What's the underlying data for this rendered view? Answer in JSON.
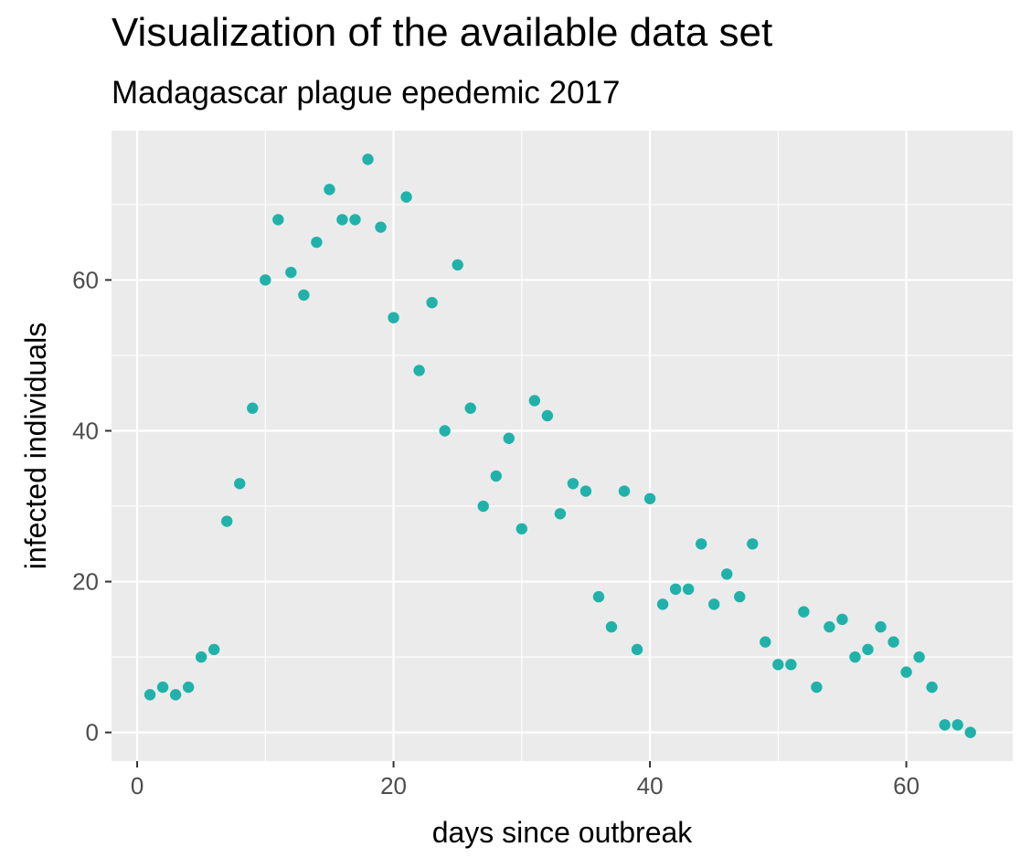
{
  "chart_data": {
    "type": "scatter",
    "title": "Visualization of the available data set",
    "subtitle": "Madagascar plague epedemic 2017",
    "xlabel": "days since outbreak",
    "ylabel": "infected individuals",
    "xlim": [
      -2,
      68.3
    ],
    "ylim": [
      -3.8,
      79.8
    ],
    "x_ticks": [
      0,
      20,
      40,
      60
    ],
    "y_ticks": [
      0,
      20,
      40,
      60
    ],
    "grid": true,
    "point_color": "#20b2aa",
    "panel_background": "#ebebeb",
    "x": [
      1,
      2,
      3,
      4,
      5,
      6,
      7,
      8,
      9,
      10,
      11,
      12,
      13,
      14,
      15,
      16,
      17,
      18,
      19,
      20,
      21,
      22,
      23,
      24,
      25,
      26,
      27,
      28,
      29,
      30,
      31,
      32,
      33,
      34,
      35,
      36,
      37,
      38,
      39,
      40,
      41,
      42,
      43,
      44,
      45,
      46,
      47,
      48,
      49,
      50,
      51,
      52,
      53,
      54,
      55,
      56,
      57,
      58,
      59,
      60,
      61,
      62,
      63,
      64,
      65
    ],
    "y": [
      5,
      6,
      5,
      6,
      10,
      11,
      28,
      33,
      43,
      60,
      68,
      61,
      58,
      65,
      72,
      68,
      68,
      76,
      67,
      55,
      71,
      48,
      57,
      40,
      62,
      43,
      30,
      34,
      39,
      27,
      44,
      42,
      29,
      33,
      32,
      18,
      14,
      32,
      11,
      31,
      17,
      19,
      19,
      25,
      17,
      21,
      18,
      25,
      12,
      9,
      9,
      16,
      6,
      14,
      15,
      10,
      11,
      14,
      12,
      8,
      10,
      6,
      1,
      1,
      0
    ]
  }
}
